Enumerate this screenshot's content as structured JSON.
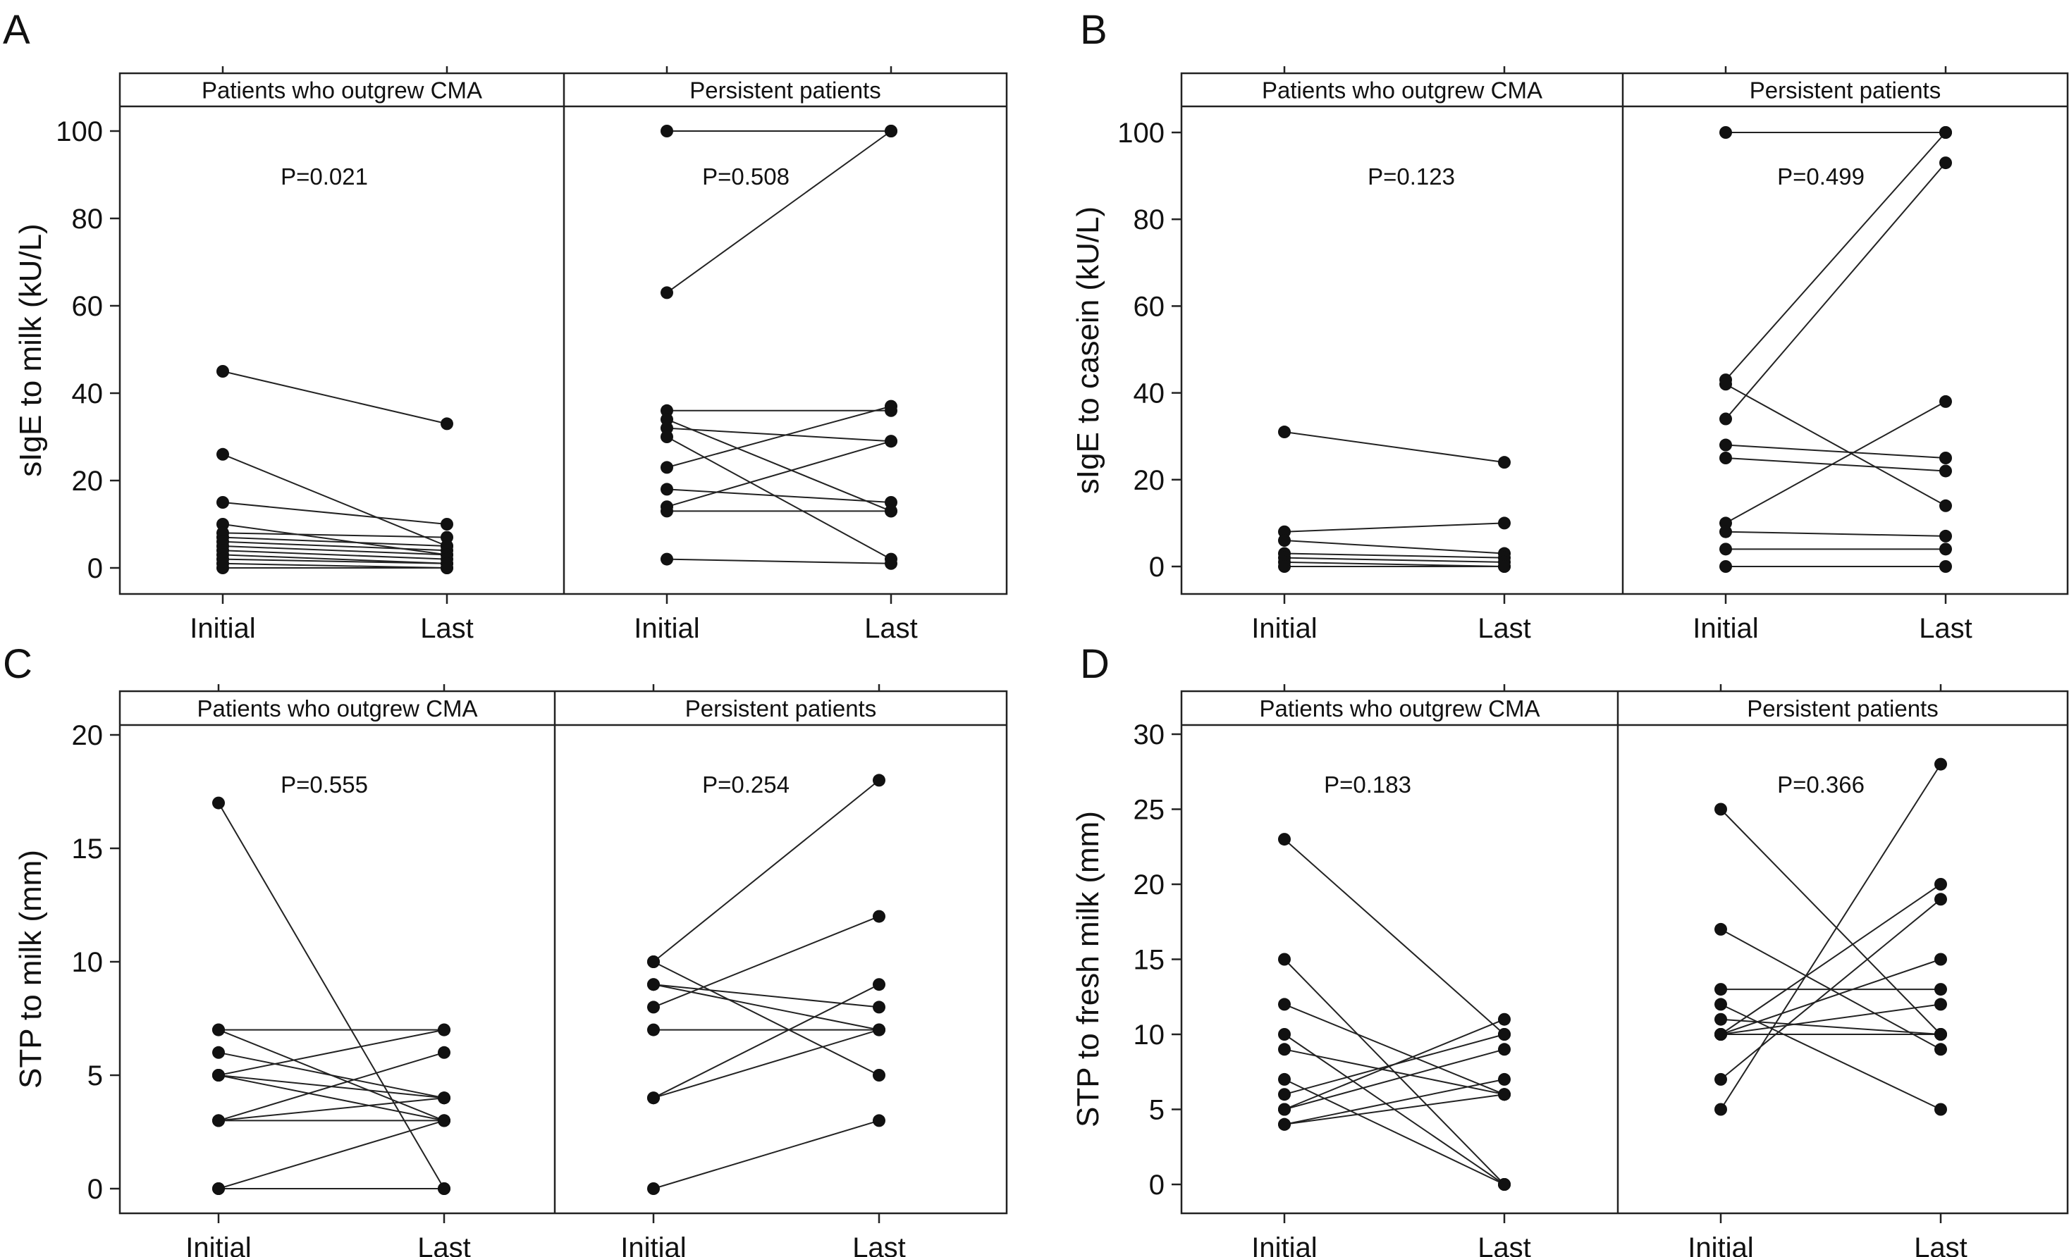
{
  "chart_data": [
    {
      "id": "A",
      "type": "line",
      "panel_label": "A",
      "ylabel": "sIgE to milk (kU/L)",
      "yticks": [
        0,
        20,
        40,
        60,
        80,
        100
      ],
      "ylim": [
        -5,
        112
      ],
      "xticks": [
        "Initial",
        "Last"
      ],
      "facets": [
        {
          "title": "Patients who outgrew CMA",
          "p_label": "P=0.021",
          "pairs": [
            [
              45,
              33
            ],
            [
              26,
              5
            ],
            [
              15,
              10
            ],
            [
              10,
              3
            ],
            [
              8,
              7
            ],
            [
              7,
              5
            ],
            [
              6,
              4
            ],
            [
              5,
              3
            ],
            [
              4,
              2
            ],
            [
              3,
              1
            ],
            [
              2,
              1
            ],
            [
              1,
              0
            ],
            [
              0,
              0
            ]
          ]
        },
        {
          "title": "Persistent patients",
          "p_label": "P=0.508",
          "pairs": [
            [
              100,
              100
            ],
            [
              63,
              100
            ],
            [
              36,
              36
            ],
            [
              34,
              13
            ],
            [
              32,
              29
            ],
            [
              30,
              2
            ],
            [
              23,
              37
            ],
            [
              18,
              15
            ],
            [
              14,
              29
            ],
            [
              13,
              13
            ],
            [
              2,
              1
            ]
          ]
        }
      ]
    },
    {
      "id": "B",
      "type": "line",
      "panel_label": "B",
      "ylabel": "sIgE to casein (kU/L)",
      "yticks": [
        0,
        20,
        40,
        60,
        80,
        100
      ],
      "ylim": [
        -5,
        112
      ],
      "xticks": [
        "Initial",
        "Last"
      ],
      "facets": [
        {
          "title": "Patients who outgrew CMA",
          "p_label": "P=0.123",
          "pairs": [
            [
              31,
              24
            ],
            [
              8,
              10
            ],
            [
              6,
              3
            ],
            [
              3,
              2
            ],
            [
              2,
              1
            ],
            [
              1,
              0
            ],
            [
              0,
              0
            ]
          ]
        },
        {
          "title": "Persistent patients",
          "p_label": "P=0.499",
          "pairs": [
            [
              100,
              100
            ],
            [
              43,
              100
            ],
            [
              42,
              14
            ],
            [
              34,
              93
            ],
            [
              28,
              25
            ],
            [
              25,
              22
            ],
            [
              10,
              38
            ],
            [
              8,
              7
            ],
            [
              4,
              4
            ],
            [
              0,
              0
            ]
          ]
        }
      ]
    },
    {
      "id": "C",
      "type": "line",
      "panel_label": "C",
      "ylabel": "STP to milk (mm)",
      "yticks": [
        0,
        5,
        10,
        15,
        20
      ],
      "ylim": [
        -1,
        20.5
      ],
      "xticks": [
        "Initial",
        "Last"
      ],
      "facets": [
        {
          "title": "Patients who outgrew CMA",
          "p_label": "P=0.555",
          "pairs": [
            [
              17,
              0
            ],
            [
              7,
              7
            ],
            [
              7,
              3
            ],
            [
              6,
              4
            ],
            [
              5,
              7
            ],
            [
              5,
              4
            ],
            [
              5,
              3
            ],
            [
              3,
              6
            ],
            [
              3,
              4
            ],
            [
              3,
              3
            ],
            [
              0,
              3
            ],
            [
              0,
              0
            ]
          ]
        },
        {
          "title": "Persistent patients",
          "p_label": "P=0.254",
          "pairs": [
            [
              10,
              18
            ],
            [
              10,
              5
            ],
            [
              9,
              8
            ],
            [
              9,
              7
            ],
            [
              8,
              12
            ],
            [
              7,
              7
            ],
            [
              4,
              9
            ],
            [
              4,
              7
            ],
            [
              0,
              3
            ]
          ]
        }
      ]
    },
    {
      "id": "D",
      "type": "line",
      "panel_label": "D",
      "ylabel": "STP to fresh milk (mm)",
      "yticks": [
        0,
        5,
        10,
        15,
        20,
        25,
        30
      ],
      "ylim": [
        -1.5,
        30.5
      ],
      "xticks": [
        "Initial",
        "Last"
      ],
      "facets": [
        {
          "title": "Patients who outgrew CMA",
          "p_label": "P=0.183",
          "pairs": [
            [
              23,
              10
            ],
            [
              15,
              0
            ],
            [
              12,
              6
            ],
            [
              10,
              0
            ],
            [
              9,
              6
            ],
            [
              7,
              0
            ],
            [
              6,
              10
            ],
            [
              5,
              11
            ],
            [
              5,
              9
            ],
            [
              4,
              7
            ],
            [
              4,
              6
            ]
          ]
        },
        {
          "title": "Persistent patients",
          "p_label": "P=0.366",
          "pairs": [
            [
              25,
              10
            ],
            [
              17,
              9
            ],
            [
              13,
              13
            ],
            [
              12,
              5
            ],
            [
              11,
              10
            ],
            [
              10,
              20
            ],
            [
              10,
              15
            ],
            [
              10,
              12
            ],
            [
              10,
              10
            ],
            [
              7,
              19
            ],
            [
              5,
              28
            ]
          ]
        }
      ]
    }
  ]
}
